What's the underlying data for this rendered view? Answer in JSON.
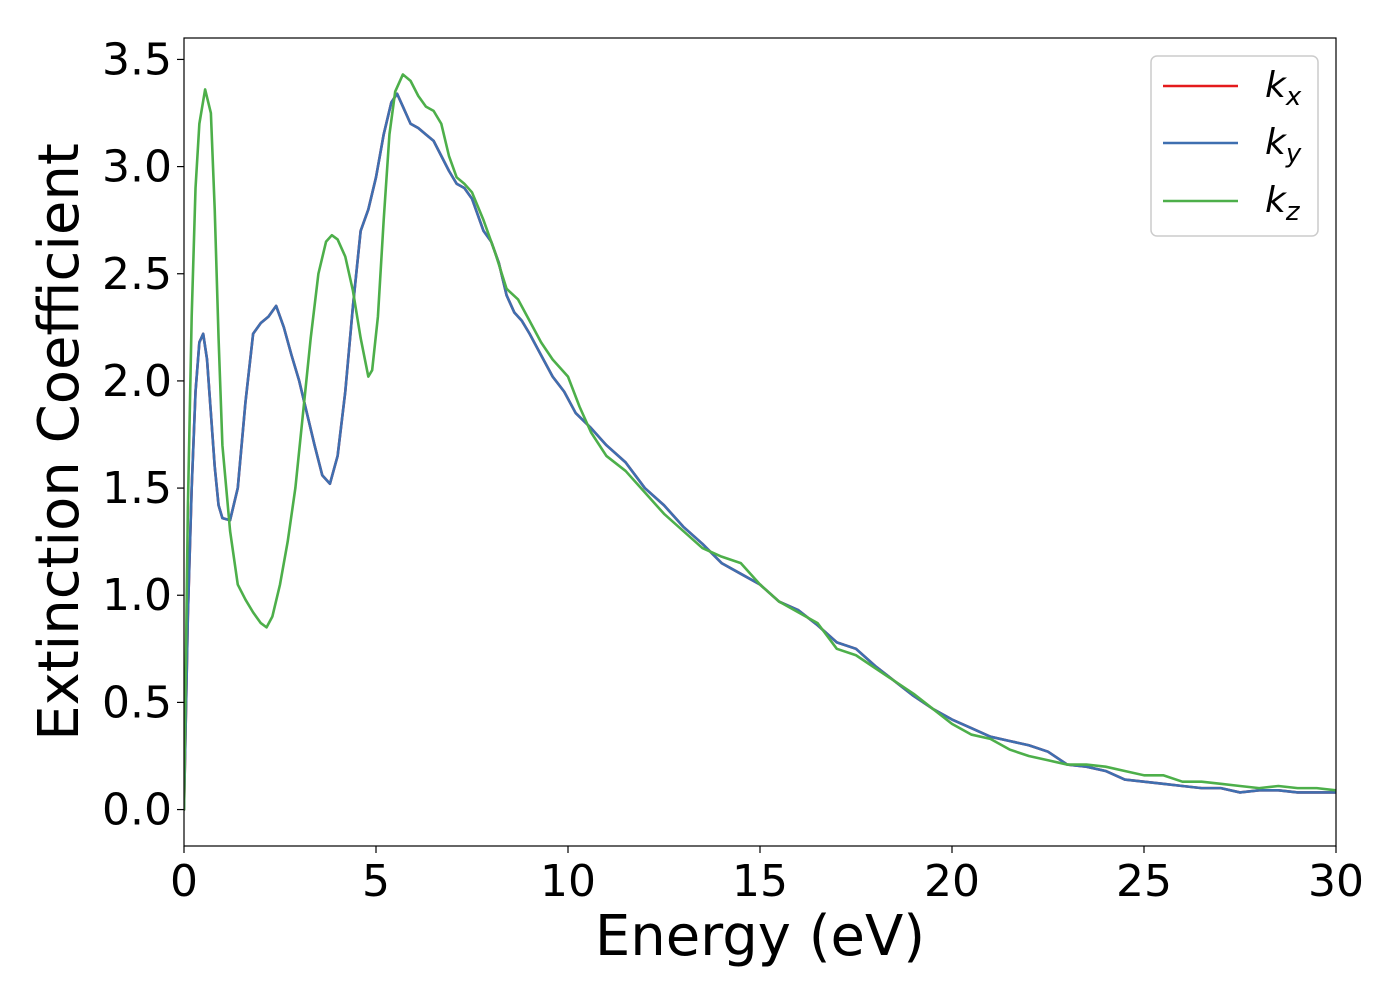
{
  "chart_data": {
    "type": "line",
    "xlabel": "Energy (eV)",
    "ylabel": "Extinction Coefficient",
    "xlim": [
      0,
      30
    ],
    "ylim": [
      -0.17,
      3.6
    ],
    "xticks": [
      0,
      5,
      10,
      15,
      20,
      25,
      30
    ],
    "xtick_labels": [
      "0",
      "5",
      "10",
      "15",
      "20",
      "25",
      "30"
    ],
    "yticks": [
      0.0,
      0.5,
      1.0,
      1.5,
      2.0,
      2.5,
      3.0,
      3.5
    ],
    "ytick_labels": [
      "0.0",
      "0.5",
      "1.0",
      "1.5",
      "2.0",
      "2.5",
      "3.0",
      "3.5"
    ],
    "grid": false,
    "legend_position": "top-right",
    "series": [
      {
        "name": "k_x",
        "label_base": "k",
        "label_sub": "x",
        "color": "#e41a1c",
        "points": [
          [
            0,
            0
          ],
          [
            0.1,
            0.9
          ],
          [
            0.2,
            1.5
          ],
          [
            0.3,
            1.95
          ],
          [
            0.4,
            2.18
          ],
          [
            0.5,
            2.22
          ],
          [
            0.6,
            2.1
          ],
          [
            0.7,
            1.85
          ],
          [
            0.8,
            1.6
          ],
          [
            0.9,
            1.42
          ],
          [
            1.0,
            1.36
          ],
          [
            1.2,
            1.35
          ],
          [
            1.4,
            1.5
          ],
          [
            1.6,
            1.9
          ],
          [
            1.8,
            2.22
          ],
          [
            2.0,
            2.27
          ],
          [
            2.2,
            2.3
          ],
          [
            2.4,
            2.35
          ],
          [
            2.6,
            2.25
          ],
          [
            2.8,
            2.12
          ],
          [
            3.0,
            2.0
          ],
          [
            3.2,
            1.85
          ],
          [
            3.4,
            1.7
          ],
          [
            3.6,
            1.56
          ],
          [
            3.8,
            1.52
          ],
          [
            4.0,
            1.65
          ],
          [
            4.2,
            1.95
          ],
          [
            4.4,
            2.35
          ],
          [
            4.6,
            2.7
          ],
          [
            4.8,
            2.8
          ],
          [
            5.0,
            2.95
          ],
          [
            5.2,
            3.15
          ],
          [
            5.4,
            3.3
          ],
          [
            5.55,
            3.34
          ],
          [
            5.7,
            3.28
          ],
          [
            5.9,
            3.2
          ],
          [
            6.1,
            3.18
          ],
          [
            6.3,
            3.15
          ],
          [
            6.5,
            3.12
          ],
          [
            6.7,
            3.05
          ],
          [
            6.9,
            2.98
          ],
          [
            7.1,
            2.92
          ],
          [
            7.3,
            2.9
          ],
          [
            7.5,
            2.85
          ],
          [
            7.8,
            2.7
          ],
          [
            8.0,
            2.65
          ],
          [
            8.2,
            2.55
          ],
          [
            8.4,
            2.4
          ],
          [
            8.6,
            2.32
          ],
          [
            8.8,
            2.28
          ],
          [
            9.0,
            2.22
          ],
          [
            9.3,
            2.12
          ],
          [
            9.6,
            2.02
          ],
          [
            9.9,
            1.95
          ],
          [
            10.2,
            1.85
          ],
          [
            10.6,
            1.78
          ],
          [
            11.0,
            1.7
          ],
          [
            11.5,
            1.62
          ],
          [
            12.0,
            1.5
          ],
          [
            12.5,
            1.42
          ],
          [
            13.0,
            1.32
          ],
          [
            13.5,
            1.24
          ],
          [
            14.0,
            1.15
          ],
          [
            14.5,
            1.1
          ],
          [
            15.0,
            1.05
          ],
          [
            15.5,
            0.97
          ],
          [
            16.0,
            0.93
          ],
          [
            16.5,
            0.86
          ],
          [
            17.0,
            0.78
          ],
          [
            17.5,
            0.75
          ],
          [
            18.0,
            0.67
          ],
          [
            18.5,
            0.6
          ],
          [
            19.0,
            0.53
          ],
          [
            19.5,
            0.47
          ],
          [
            20.0,
            0.42
          ],
          [
            20.5,
            0.38
          ],
          [
            21.0,
            0.34
          ],
          [
            21.5,
            0.32
          ],
          [
            22.0,
            0.3
          ],
          [
            22.5,
            0.27
          ],
          [
            23.0,
            0.21
          ],
          [
            23.5,
            0.2
          ],
          [
            24.0,
            0.18
          ],
          [
            24.5,
            0.14
          ],
          [
            25.0,
            0.13
          ],
          [
            25.5,
            0.12
          ],
          [
            26.0,
            0.11
          ],
          [
            26.5,
            0.1
          ],
          [
            27.0,
            0.1
          ],
          [
            27.5,
            0.08
          ],
          [
            28.0,
            0.09
          ],
          [
            28.5,
            0.09
          ],
          [
            29.0,
            0.08
          ],
          [
            29.5,
            0.08
          ],
          [
            30.0,
            0.08
          ]
        ]
      },
      {
        "name": "k_y",
        "label_base": "k",
        "label_sub": "y",
        "color": "#3e6fb0",
        "points": [
          [
            0,
            0
          ],
          [
            0.1,
            0.9
          ],
          [
            0.2,
            1.5
          ],
          [
            0.3,
            1.95
          ],
          [
            0.4,
            2.18
          ],
          [
            0.5,
            2.22
          ],
          [
            0.6,
            2.1
          ],
          [
            0.7,
            1.85
          ],
          [
            0.8,
            1.6
          ],
          [
            0.9,
            1.42
          ],
          [
            1.0,
            1.36
          ],
          [
            1.2,
            1.35
          ],
          [
            1.4,
            1.5
          ],
          [
            1.6,
            1.9
          ],
          [
            1.8,
            2.22
          ],
          [
            2.0,
            2.27
          ],
          [
            2.2,
            2.3
          ],
          [
            2.4,
            2.35
          ],
          [
            2.6,
            2.25
          ],
          [
            2.8,
            2.12
          ],
          [
            3.0,
            2.0
          ],
          [
            3.2,
            1.85
          ],
          [
            3.4,
            1.7
          ],
          [
            3.6,
            1.56
          ],
          [
            3.8,
            1.52
          ],
          [
            4.0,
            1.65
          ],
          [
            4.2,
            1.95
          ],
          [
            4.4,
            2.35
          ],
          [
            4.6,
            2.7
          ],
          [
            4.8,
            2.8
          ],
          [
            5.0,
            2.95
          ],
          [
            5.2,
            3.15
          ],
          [
            5.4,
            3.3
          ],
          [
            5.55,
            3.34
          ],
          [
            5.7,
            3.28
          ],
          [
            5.9,
            3.2
          ],
          [
            6.1,
            3.18
          ],
          [
            6.3,
            3.15
          ],
          [
            6.5,
            3.12
          ],
          [
            6.7,
            3.05
          ],
          [
            6.9,
            2.98
          ],
          [
            7.1,
            2.92
          ],
          [
            7.3,
            2.9
          ],
          [
            7.5,
            2.85
          ],
          [
            7.8,
            2.7
          ],
          [
            8.0,
            2.65
          ],
          [
            8.2,
            2.55
          ],
          [
            8.4,
            2.4
          ],
          [
            8.6,
            2.32
          ],
          [
            8.8,
            2.28
          ],
          [
            9.0,
            2.22
          ],
          [
            9.3,
            2.12
          ],
          [
            9.6,
            2.02
          ],
          [
            9.9,
            1.95
          ],
          [
            10.2,
            1.85
          ],
          [
            10.6,
            1.78
          ],
          [
            11.0,
            1.7
          ],
          [
            11.5,
            1.62
          ],
          [
            12.0,
            1.5
          ],
          [
            12.5,
            1.42
          ],
          [
            13.0,
            1.32
          ],
          [
            13.5,
            1.24
          ],
          [
            14.0,
            1.15
          ],
          [
            14.5,
            1.1
          ],
          [
            15.0,
            1.05
          ],
          [
            15.5,
            0.97
          ],
          [
            16.0,
            0.93
          ],
          [
            16.5,
            0.86
          ],
          [
            17.0,
            0.78
          ],
          [
            17.5,
            0.75
          ],
          [
            18.0,
            0.67
          ],
          [
            18.5,
            0.6
          ],
          [
            19.0,
            0.53
          ],
          [
            19.5,
            0.47
          ],
          [
            20.0,
            0.42
          ],
          [
            20.5,
            0.38
          ],
          [
            21.0,
            0.34
          ],
          [
            21.5,
            0.32
          ],
          [
            22.0,
            0.3
          ],
          [
            22.5,
            0.27
          ],
          [
            23.0,
            0.21
          ],
          [
            23.5,
            0.2
          ],
          [
            24.0,
            0.18
          ],
          [
            24.5,
            0.14
          ],
          [
            25.0,
            0.13
          ],
          [
            25.5,
            0.12
          ],
          [
            26.0,
            0.11
          ],
          [
            26.5,
            0.1
          ],
          [
            27.0,
            0.1
          ],
          [
            27.5,
            0.08
          ],
          [
            28.0,
            0.09
          ],
          [
            28.5,
            0.09
          ],
          [
            29.0,
            0.08
          ],
          [
            29.5,
            0.08
          ],
          [
            30.0,
            0.08
          ]
        ]
      },
      {
        "name": "k_z",
        "label_base": "k",
        "label_sub": "z",
        "color": "#4daf4a",
        "points": [
          [
            0,
            0
          ],
          [
            0.1,
            1.4
          ],
          [
            0.2,
            2.3
          ],
          [
            0.3,
            2.9
          ],
          [
            0.4,
            3.2
          ],
          [
            0.55,
            3.36
          ],
          [
            0.7,
            3.25
          ],
          [
            0.8,
            2.8
          ],
          [
            0.9,
            2.2
          ],
          [
            1.0,
            1.7
          ],
          [
            1.2,
            1.3
          ],
          [
            1.4,
            1.05
          ],
          [
            1.6,
            0.98
          ],
          [
            1.8,
            0.92
          ],
          [
            2.0,
            0.87
          ],
          [
            2.15,
            0.85
          ],
          [
            2.3,
            0.9
          ],
          [
            2.5,
            1.05
          ],
          [
            2.7,
            1.25
          ],
          [
            2.9,
            1.5
          ],
          [
            3.1,
            1.85
          ],
          [
            3.3,
            2.2
          ],
          [
            3.5,
            2.5
          ],
          [
            3.7,
            2.65
          ],
          [
            3.85,
            2.68
          ],
          [
            4.0,
            2.66
          ],
          [
            4.2,
            2.58
          ],
          [
            4.4,
            2.42
          ],
          [
            4.6,
            2.2
          ],
          [
            4.8,
            2.02
          ],
          [
            4.9,
            2.05
          ],
          [
            5.05,
            2.3
          ],
          [
            5.2,
            2.75
          ],
          [
            5.35,
            3.15
          ],
          [
            5.5,
            3.35
          ],
          [
            5.7,
            3.43
          ],
          [
            5.9,
            3.4
          ],
          [
            6.1,
            3.33
          ],
          [
            6.3,
            3.28
          ],
          [
            6.5,
            3.26
          ],
          [
            6.7,
            3.2
          ],
          [
            6.9,
            3.05
          ],
          [
            7.1,
            2.95
          ],
          [
            7.3,
            2.92
          ],
          [
            7.5,
            2.88
          ],
          [
            7.8,
            2.75
          ],
          [
            8.1,
            2.6
          ],
          [
            8.4,
            2.43
          ],
          [
            8.7,
            2.38
          ],
          [
            9.0,
            2.28
          ],
          [
            9.3,
            2.18
          ],
          [
            9.6,
            2.1
          ],
          [
            10.0,
            2.02
          ],
          [
            10.3,
            1.88
          ],
          [
            10.6,
            1.76
          ],
          [
            11.0,
            1.65
          ],
          [
            11.5,
            1.58
          ],
          [
            12.0,
            1.48
          ],
          [
            12.5,
            1.38
          ],
          [
            13.0,
            1.3
          ],
          [
            13.5,
            1.22
          ],
          [
            14.0,
            1.18
          ],
          [
            14.5,
            1.15
          ],
          [
            15.0,
            1.05
          ],
          [
            15.5,
            0.97
          ],
          [
            16.0,
            0.92
          ],
          [
            16.5,
            0.87
          ],
          [
            17.0,
            0.75
          ],
          [
            17.5,
            0.72
          ],
          [
            18.0,
            0.66
          ],
          [
            18.5,
            0.6
          ],
          [
            19.0,
            0.54
          ],
          [
            19.5,
            0.47
          ],
          [
            20.0,
            0.4
          ],
          [
            20.5,
            0.35
          ],
          [
            21.0,
            0.33
          ],
          [
            21.5,
            0.28
          ],
          [
            22.0,
            0.25
          ],
          [
            22.5,
            0.23
          ],
          [
            23.0,
            0.21
          ],
          [
            23.5,
            0.21
          ],
          [
            24.0,
            0.2
          ],
          [
            24.5,
            0.18
          ],
          [
            25.0,
            0.16
          ],
          [
            25.5,
            0.16
          ],
          [
            26.0,
            0.13
          ],
          [
            26.5,
            0.13
          ],
          [
            27.0,
            0.12
          ],
          [
            27.5,
            0.11
          ],
          [
            28.0,
            0.1
          ],
          [
            28.5,
            0.11
          ],
          [
            29.0,
            0.1
          ],
          [
            29.5,
            0.1
          ],
          [
            30.0,
            0.09
          ]
        ]
      }
    ]
  }
}
